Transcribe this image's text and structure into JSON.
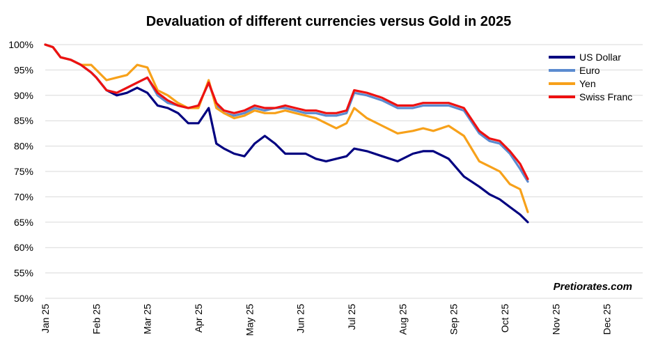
{
  "chart_data": {
    "type": "line",
    "title": "Devaluation of different currencies versus Gold in 2025",
    "xlabel": "",
    "ylabel": "",
    "ylim": [
      50,
      100
    ],
    "yticks": [
      50,
      55,
      60,
      65,
      70,
      75,
      80,
      85,
      90,
      95,
      100
    ],
    "ytick_labels": [
      "50%",
      "55%",
      "60%",
      "65%",
      "70%",
      "75%",
      "80%",
      "85%",
      "90%",
      "95%",
      "100%"
    ],
    "x_unit": "months since Jan 1, 2025",
    "xlim": [
      0,
      11.7
    ],
    "xticks": [
      0,
      1,
      2,
      3,
      4,
      5,
      6,
      7,
      8,
      9,
      10,
      11
    ],
    "xtick_labels": [
      "Jan 25",
      "Feb 25",
      "Mar 25",
      "Apr 25",
      "May 25",
      "Jun 25",
      "Jul 25",
      "Aug 25",
      "Sep 25",
      "Oct 25",
      "Nov 25",
      "Dec 25"
    ],
    "grid": "horizontal",
    "legend_position": "top-right",
    "x": [
      0.0,
      0.15,
      0.3,
      0.5,
      0.7,
      0.9,
      1.0,
      1.2,
      1.4,
      1.6,
      1.8,
      2.0,
      2.2,
      2.4,
      2.6,
      2.8,
      3.0,
      3.2,
      3.35,
      3.5,
      3.7,
      3.9,
      4.1,
      4.3,
      4.5,
      4.7,
      4.9,
      5.1,
      5.3,
      5.5,
      5.7,
      5.9,
      6.05,
      6.3,
      6.6,
      6.9,
      7.2,
      7.4,
      7.6,
      7.9,
      8.2,
      8.5,
      8.7,
      8.9,
      9.1,
      9.3,
      9.45
    ],
    "series": [
      {
        "name": "US Dollar",
        "color": "#000080",
        "values": [
          100,
          99.5,
          97.5,
          97,
          96,
          94.5,
          93.5,
          91,
          90,
          90.5,
          91.5,
          90.5,
          88,
          87.5,
          86.5,
          84.5,
          84.5,
          87.5,
          80.5,
          79.5,
          78.5,
          78,
          80.5,
          82,
          80.5,
          78.5,
          78.5,
          78.5,
          77.5,
          77,
          77.5,
          78,
          79.5,
          79,
          78,
          77,
          78.5,
          79,
          79,
          77.5,
          74,
          72,
          70.5,
          69.5,
          68,
          66.5,
          65
        ]
      },
      {
        "name": "Euro",
        "color": "#5B8BD0",
        "values": [
          100,
          99.5,
          97.5,
          97,
          96,
          94.5,
          93.5,
          91,
          90.5,
          91.5,
          92.5,
          93.5,
          90,
          88.5,
          88,
          87.5,
          88,
          92.5,
          88,
          86.5,
          86,
          86.5,
          87.5,
          87,
          87.5,
          87.5,
          87,
          86.5,
          86.5,
          86,
          86,
          86.5,
          90.5,
          90,
          89,
          87.5,
          87.5,
          88,
          88,
          88,
          87,
          82.5,
          81,
          80.5,
          78.5,
          75.5,
          73
        ]
      },
      {
        "name": "Yen",
        "color": "#F7A11A",
        "values": [
          100,
          99.5,
          97.5,
          97,
          96,
          96,
          95,
          93,
          93.5,
          94,
          96,
          95.5,
          91,
          90,
          88.5,
          87.5,
          87.5,
          93,
          87.5,
          86.5,
          85.5,
          86,
          87,
          86.5,
          86.5,
          87,
          86.5,
          86,
          85.5,
          84.5,
          83.5,
          84.5,
          87.5,
          85.5,
          84,
          82.5,
          83,
          83.5,
          83,
          84,
          82,
          77,
          76,
          75,
          72.5,
          71.5,
          67
        ]
      },
      {
        "name": "Swiss Franc",
        "color": "#EE1111",
        "values": [
          100,
          99.5,
          97.5,
          97,
          96,
          94.5,
          93.5,
          91,
          90.5,
          91.5,
          92.5,
          93.5,
          90.5,
          89,
          88,
          87.5,
          88,
          92.5,
          88.5,
          87,
          86.5,
          87,
          88,
          87.5,
          87.5,
          88,
          87.5,
          87,
          87,
          86.5,
          86.5,
          87,
          91,
          90.5,
          89.5,
          88,
          88,
          88.5,
          88.5,
          88.5,
          87.5,
          83,
          81.5,
          81,
          79,
          76.5,
          73.5
        ]
      }
    ],
    "watermark": "Pretiorates.com"
  }
}
